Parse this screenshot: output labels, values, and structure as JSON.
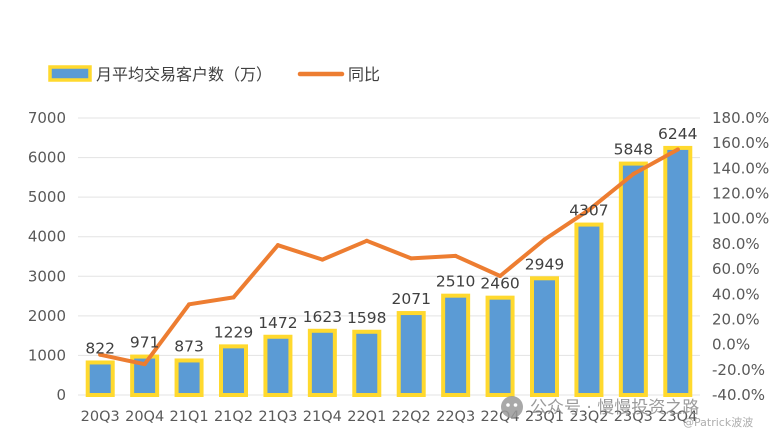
{
  "chart_data": {
    "type": "bar",
    "categories": [
      "20Q3",
      "20Q4",
      "21Q1",
      "21Q2",
      "21Q3",
      "21Q4",
      "22Q1",
      "22Q2",
      "22Q3",
      "22Q4",
      "23Q1",
      "23Q2",
      "23Q3",
      "23Q4"
    ],
    "series": [
      {
        "name": "月平均交易客户数（万）",
        "type": "bar",
        "axis": "left",
        "values": [
          822,
          971,
          873,
          1229,
          1472,
          1623,
          1598,
          2071,
          2510,
          2460,
          2949,
          4307,
          5848,
          6244
        ],
        "color": "#5b9bd5",
        "border_color": "#ffd92e"
      },
      {
        "name": "同比",
        "type": "line",
        "axis": "right",
        "values": [
          -8.0,
          -15.5,
          32.0,
          37.5,
          79.0,
          67.5,
          82.5,
          68.5,
          70.5,
          54.5,
          83.5,
          107.0,
          135.5,
          155.0
        ],
        "color": "#ed7d31"
      }
    ],
    "left_axis": {
      "ylim": [
        0,
        7000
      ],
      "ticks": [
        "0",
        "1000",
        "2000",
        "3000",
        "4000",
        "5000",
        "6000",
        "7000"
      ]
    },
    "right_axis": {
      "ylim": [
        -40,
        180
      ],
      "ticks": [
        "-40.0%",
        "-20.0%",
        "0.0%",
        "20.0%",
        "40.0%",
        "60.0%",
        "80.0%",
        "100.0%",
        "120.0%",
        "140.0%",
        "160.0%",
        "180.0%"
      ]
    },
    "data_labels": [
      "822",
      "971",
      "873",
      "1229",
      "1472",
      "1623",
      "1598",
      "2071",
      "2510",
      "2460",
      "2949",
      "4307",
      "5848",
      "6244"
    ],
    "legend_position": "top-left",
    "grid": true,
    "gridline_color": "#e3e3e3"
  },
  "watermark": {
    "brand": "公众号 · 慢慢投资之路",
    "author": "@Patrick波波",
    "icon": "wechat-icon"
  }
}
